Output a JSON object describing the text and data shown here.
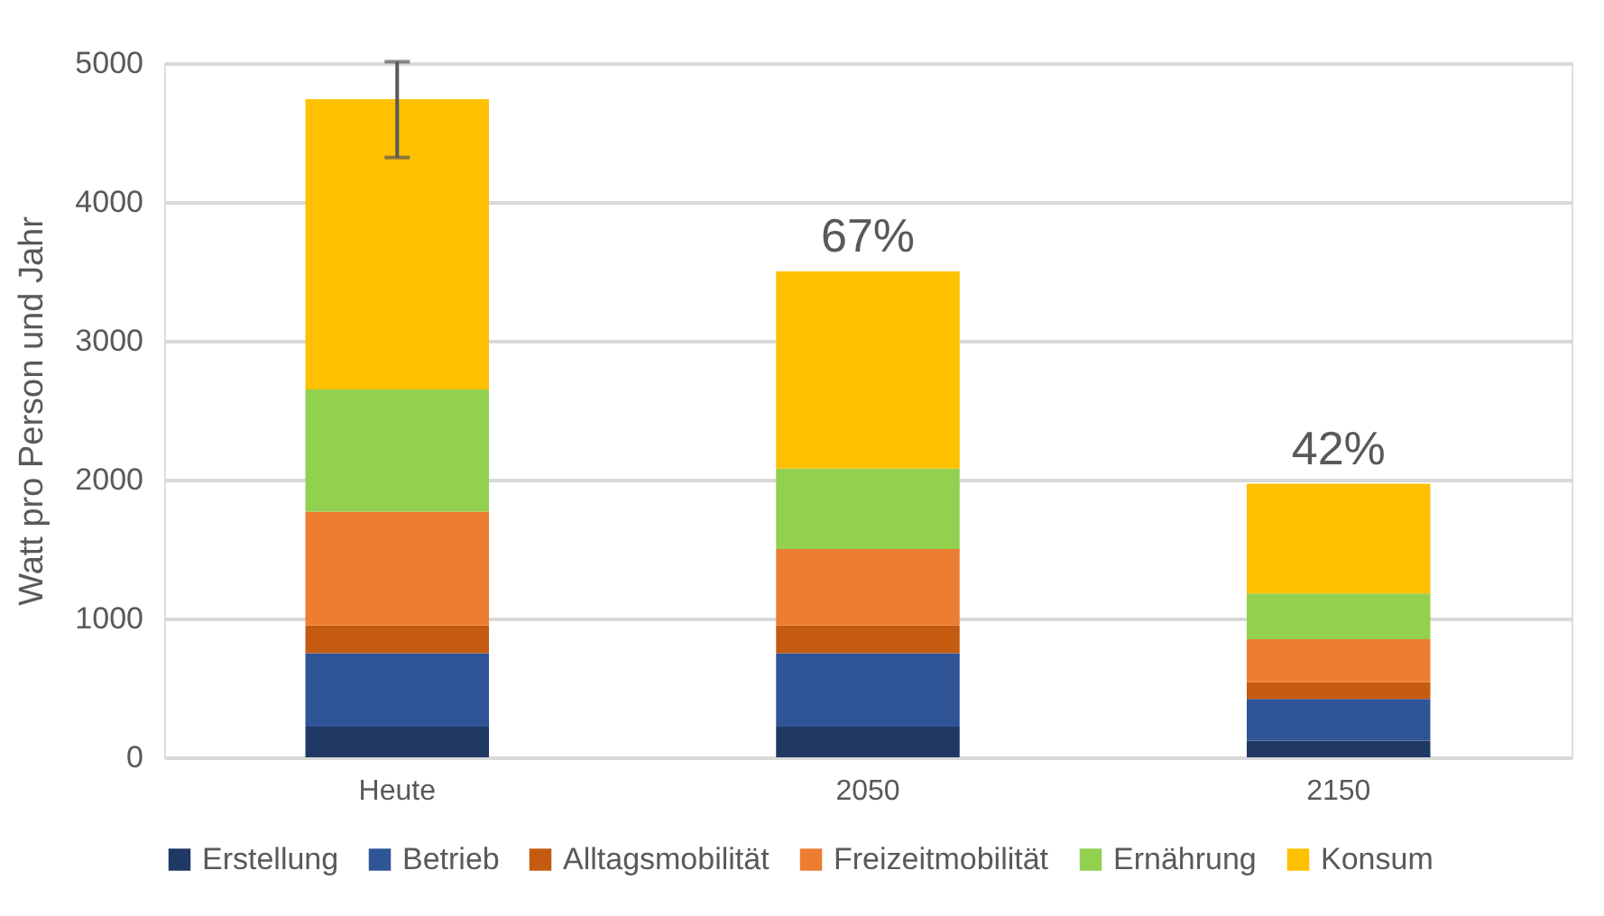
{
  "chart_data": {
    "type": "bar",
    "stacked": true,
    "ylabel": "Watt pro Person und Jahr",
    "categories": [
      "Heute",
      "2050",
      "2150"
    ],
    "series": [
      {
        "name": "Erstellung",
        "color": "#203864",
        "values": [
          220,
          220,
          120
        ]
      },
      {
        "name": "Betrieb",
        "color": "#2f5597",
        "values": [
          530,
          530,
          300
        ]
      },
      {
        "name": "Alltagsmobilität",
        "color": "#c55a11",
        "values": [
          200,
          200,
          120
        ]
      },
      {
        "name": "Freizeitmobilität",
        "color": "#ed7d31",
        "values": [
          820,
          550,
          310
        ]
      },
      {
        "name": "Ernährung",
        "color": "#92d050",
        "values": [
          880,
          580,
          330
        ]
      },
      {
        "name": "Konsum",
        "color": "#ffc000",
        "values": [
          2090,
          1420,
          790
        ],
        "errors": [
          [
            4320,
            5010
          ],
          null,
          null
        ]
      }
    ],
    "annotations": [
      {
        "text": "67%",
        "x": "2050",
        "y": 3500
      },
      {
        "text": "42%",
        "x": "2150",
        "y": 1970
      }
    ],
    "ylim": [
      0,
      5000
    ],
    "yticks": [
      0,
      1000,
      2000,
      3000,
      4000,
      5000
    ],
    "grid": "y",
    "legend": "bottom"
  }
}
